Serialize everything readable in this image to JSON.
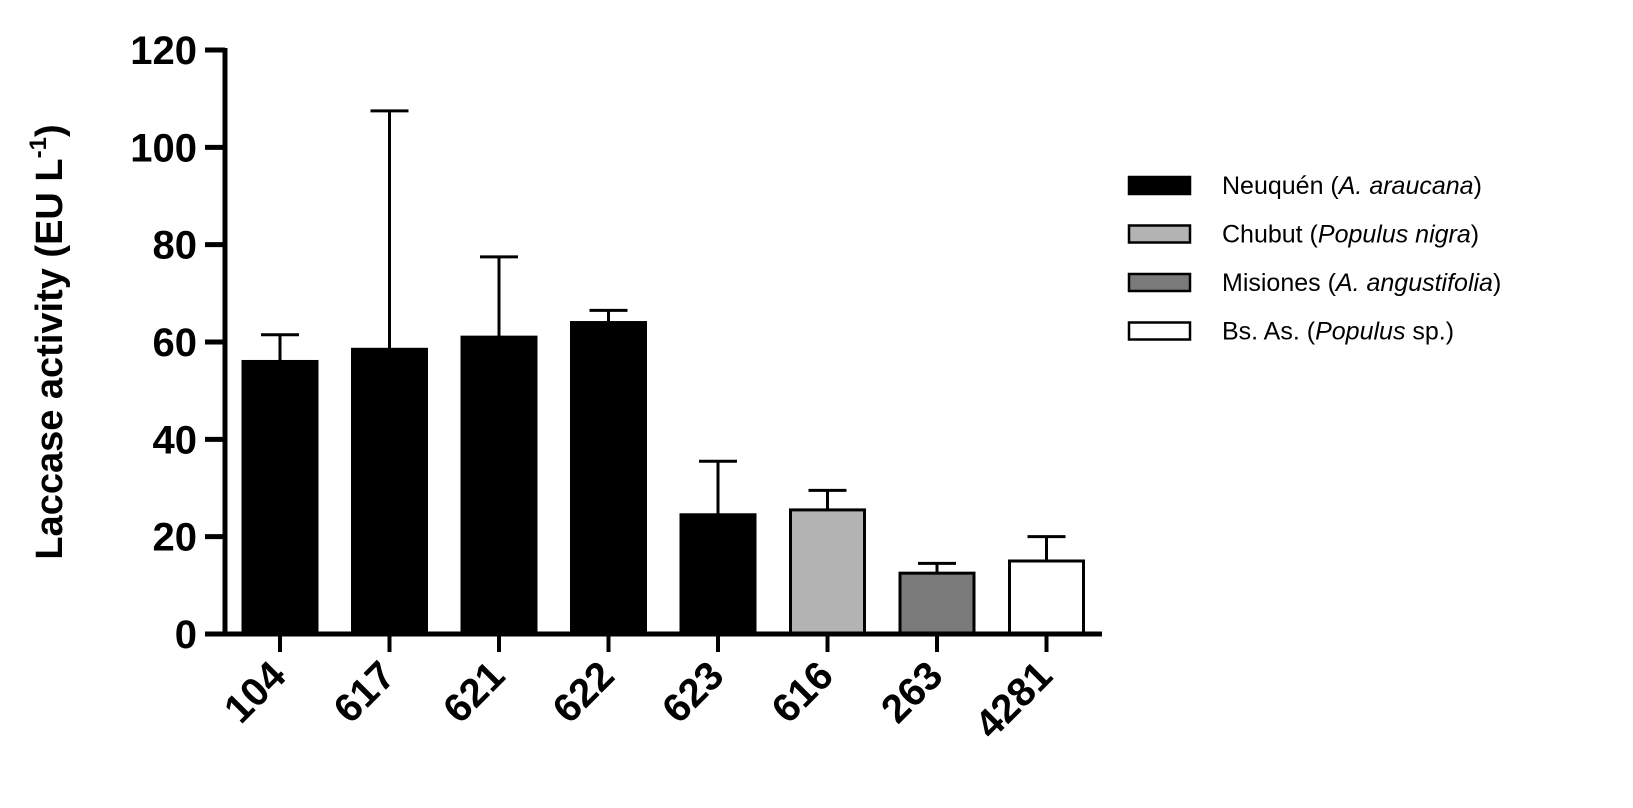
{
  "chart_data": {
    "type": "bar",
    "title": "",
    "xlabel": "",
    "ylabel": "Laccase activity (EU L",
    "ylabel_sup": "-1",
    "ylabel_close": ")",
    "ylim": [
      0,
      120
    ],
    "yticks": [
      0,
      20,
      40,
      60,
      80,
      100,
      120
    ],
    "grid": false,
    "legend_position": "right",
    "categories": [
      "104",
      "617",
      "621",
      "622",
      "623",
      "616",
      "263",
      "4281"
    ],
    "values": [
      56,
      58.5,
      61,
      64,
      24.5,
      25.5,
      12.5,
      15
    ],
    "error_upper": [
      61.5,
      107.5,
      77.5,
      66.5,
      35.5,
      29.5,
      14.5,
      20
    ],
    "bar_group": [
      0,
      0,
      0,
      0,
      0,
      1,
      2,
      3
    ],
    "legend": [
      {
        "prefix": "Neuquén (",
        "italic": "A. araucana",
        "suffix": ")",
        "color": "#000000"
      },
      {
        "prefix": "Chubut (",
        "italic": "Populus nigra",
        "suffix": ")",
        "color": "#b3b3b3"
      },
      {
        "prefix": "Misiones (",
        "italic": "A. angustifolia",
        "suffix": ")",
        "color": "#7a7a7a"
      },
      {
        "prefix": "Bs. As. (",
        "italic": "Populus",
        "suffix": " sp.)",
        "color": "#ffffff"
      }
    ]
  }
}
